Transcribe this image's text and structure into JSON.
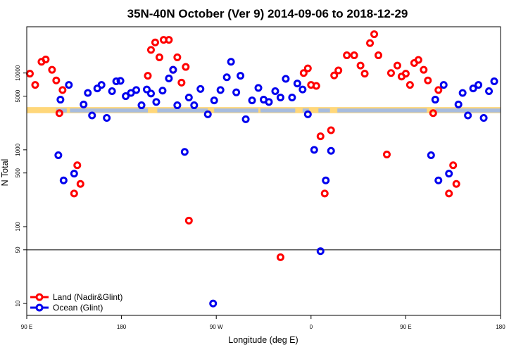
{
  "chart_data": {
    "type": "scatter",
    "title": "35N-40N October (Ver 9)   2014-09-06 to 2018-12-29",
    "xlabel": "Longitude (deg E)",
    "ylabel": "N Total",
    "x_scale": "linear",
    "y_scale": "log",
    "xlim": [
      90,
      540
    ],
    "ylim": [
      7,
      40000
    ],
    "x_ticks": [
      {
        "value": 90,
        "label": "90 E"
      },
      {
        "value": 180,
        "label": "180"
      },
      {
        "value": 270,
        "label": "90 W"
      },
      {
        "value": 360,
        "label": "0"
      },
      {
        "value": 450,
        "label": "90 E"
      },
      {
        "value": 540,
        "label": "180"
      }
    ],
    "y_ticks": [
      {
        "value": 10,
        "label": "10"
      },
      {
        "value": 50,
        "label": "50"
      },
      {
        "value": 100,
        "label": "100"
      },
      {
        "value": 500,
        "label": "500"
      },
      {
        "value": 1000,
        "label": "1000"
      },
      {
        "value": 5000,
        "label": "5000"
      },
      {
        "value": 10000,
        "label": "10000"
      }
    ],
    "reference_line": {
      "y": 50
    },
    "band": {
      "y_range": [
        3000,
        3600
      ],
      "colors": [
        "#ffd77a",
        "#a7bcde"
      ]
    },
    "legend": {
      "position": "bottom-left"
    },
    "series": [
      {
        "name": "Land (Nadir&Glint)",
        "color": "#ff0000",
        "points": [
          [
            93,
            9800
          ],
          [
            98,
            7000
          ],
          [
            104,
            14000
          ],
          [
            108,
            15000
          ],
          [
            114,
            11000
          ],
          [
            118,
            8000
          ],
          [
            121,
            3000
          ],
          [
            124,
            6000
          ],
          [
            135,
            270
          ],
          [
            138,
            630
          ],
          [
            141,
            360
          ],
          [
            205,
            9200
          ],
          [
            208,
            20000
          ],
          [
            212,
            25000
          ],
          [
            216,
            16000
          ],
          [
            220,
            27000
          ],
          [
            225,
            27000
          ],
          [
            229,
            11000
          ],
          [
            233,
            16000
          ],
          [
            237,
            7500
          ],
          [
            241,
            12000
          ],
          [
            244,
            120
          ],
          [
            331,
            40
          ],
          [
            353,
            10000
          ],
          [
            357,
            11500
          ],
          [
            360,
            7000
          ],
          [
            365,
            6800
          ],
          [
            369,
            1500
          ],
          [
            373,
            270
          ],
          [
            379,
            1800
          ],
          [
            382,
            9300
          ],
          [
            386,
            10800
          ],
          [
            394,
            17000
          ],
          [
            401,
            17000
          ],
          [
            407,
            12500
          ],
          [
            411,
            9800
          ],
          [
            416,
            24500
          ],
          [
            420,
            32000
          ],
          [
            424,
            17000
          ],
          [
            432,
            870
          ],
          [
            436,
            10000
          ],
          [
            442,
            12500
          ],
          [
            446,
            9000
          ],
          [
            450,
            9800
          ],
          [
            454,
            7000
          ],
          [
            458,
            13500
          ],
          [
            462,
            14800
          ],
          [
            467,
            11000
          ],
          [
            471,
            8000
          ],
          [
            476,
            3000
          ],
          [
            481,
            6000
          ],
          [
            491,
            270
          ],
          [
            495,
            630
          ],
          [
            498,
            360
          ]
        ]
      },
      {
        "name": "Ocean (Glint)",
        "color": "#0000ee",
        "points": [
          [
            120,
            850
          ],
          [
            122,
            4500
          ],
          [
            125,
            400
          ],
          [
            130,
            7000
          ],
          [
            135,
            490
          ],
          [
            144,
            3900
          ],
          [
            148,
            5500
          ],
          [
            152,
            2800
          ],
          [
            157,
            6300
          ],
          [
            161,
            7000
          ],
          [
            166,
            2600
          ],
          [
            171,
            5800
          ],
          [
            175,
            7800
          ],
          [
            179,
            7900
          ],
          [
            184,
            5000
          ],
          [
            189,
            5500
          ],
          [
            194,
            6000
          ],
          [
            199,
            3800
          ],
          [
            204,
            6100
          ],
          [
            208,
            5400
          ],
          [
            213,
            4200
          ],
          [
            219,
            5900
          ],
          [
            225,
            8500
          ],
          [
            229,
            11000
          ],
          [
            233,
            3800
          ],
          [
            267,
            10
          ],
          [
            240,
            940
          ],
          [
            244,
            4800
          ],
          [
            249,
            3800
          ],
          [
            255,
            6200
          ],
          [
            262,
            2900
          ],
          [
            268,
            4400
          ],
          [
            274,
            6000
          ],
          [
            280,
            8800
          ],
          [
            284,
            14000
          ],
          [
            289,
            5600
          ],
          [
            293,
            9200
          ],
          [
            298,
            2500
          ],
          [
            304,
            4400
          ],
          [
            310,
            6400
          ],
          [
            315,
            4500
          ],
          [
            320,
            4200
          ],
          [
            326,
            5800
          ],
          [
            331,
            4800
          ],
          [
            336,
            8400
          ],
          [
            342,
            4800
          ],
          [
            347,
            7300
          ],
          [
            352,
            6100
          ],
          [
            357,
            2900
          ],
          [
            363,
            1000
          ],
          [
            369,
            48
          ],
          [
            374,
            400
          ],
          [
            379,
            970
          ],
          [
            474,
            850
          ],
          [
            478,
            4500
          ],
          [
            481,
            400
          ],
          [
            486,
            7000
          ],
          [
            491,
            490
          ],
          [
            500,
            3900
          ],
          [
            504,
            5500
          ],
          [
            509,
            2800
          ],
          [
            514,
            6300
          ],
          [
            519,
            7000
          ],
          [
            524,
            2600
          ],
          [
            529,
            5800
          ],
          [
            534,
            7800
          ]
        ]
      }
    ]
  }
}
